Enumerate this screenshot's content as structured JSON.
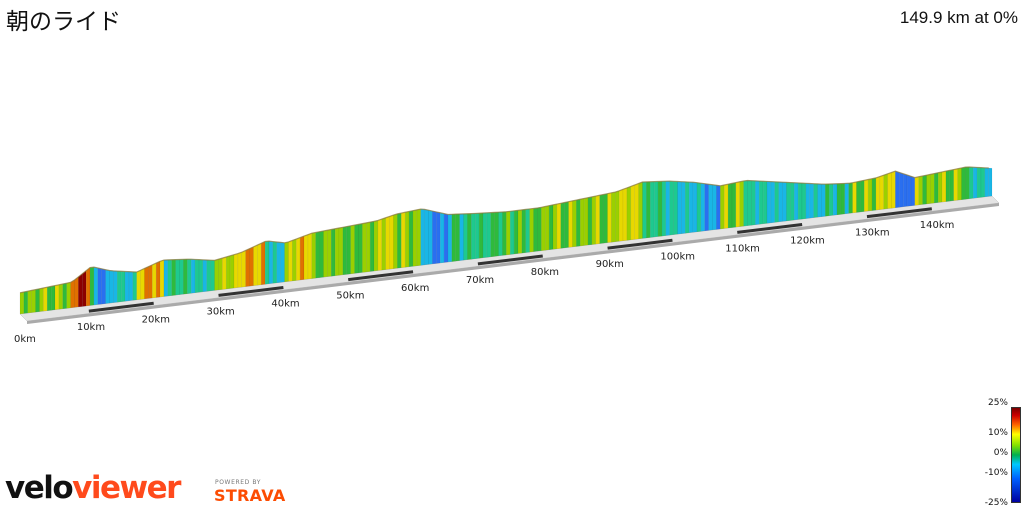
{
  "header": {
    "title": "朝のライド",
    "summary": "149.9 km at 0%"
  },
  "chart_data": {
    "type": "area",
    "title": "朝のライド",
    "xlabel": "",
    "ylabel": "",
    "x_unit": "km",
    "x_range": [
      0,
      149.9
    ],
    "x_ticks": [
      "0km",
      "10km",
      "20km",
      "30km",
      "40km",
      "50km",
      "60km",
      "70km",
      "80km",
      "90km",
      "100km",
      "110km",
      "120km",
      "130km",
      "140km"
    ],
    "profile": {
      "km": [
        0,
        4,
        8,
        11,
        14,
        18,
        22,
        26,
        30,
        34,
        38,
        41,
        45,
        50,
        55,
        58,
        62,
        66,
        70,
        75,
        80,
        84,
        88,
        92,
        96,
        100,
        104,
        108,
        112,
        116,
        120,
        124,
        128,
        132,
        135,
        138,
        142,
        146,
        149.9
      ],
      "height": [
        6,
        7,
        8,
        14,
        11,
        9,
        13,
        12,
        10,
        12,
        16,
        14,
        17,
        18,
        19,
        21,
        22,
        18,
        17,
        16,
        16,
        17,
        18,
        19,
        22,
        21,
        19,
        16,
        17,
        15,
        13,
        11,
        10,
        11,
        13,
        9,
        10,
        11,
        9
      ],
      "note": "relative elevation, read off the 3D profile"
    },
    "gradient_legend": {
      "labels": [
        "25%",
        "10%",
        "0%",
        "-10%",
        "-25%"
      ]
    }
  },
  "legend": {
    "l25": "25%",
    "l10": "10%",
    "l0": "0%",
    "lm10": "-10%",
    "lm25": "-25%"
  },
  "brand": {
    "velo": "velo",
    "viewer": "viewer",
    "powered": "POWERED BY",
    "strava": "STRAVA"
  },
  "colors": {
    "accent": "#ff4a1c",
    "strava": "#fc4c02",
    "base": "#d8d8d8",
    "base_edge": "#999999"
  }
}
